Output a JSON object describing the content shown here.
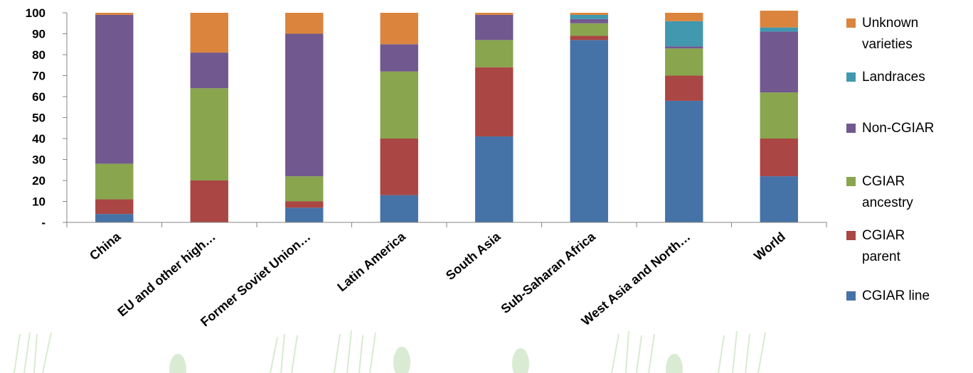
{
  "chart_data": {
    "type": "bar",
    "stacked": true,
    "title": "",
    "xlabel": "",
    "ylabel": "",
    "ylim": [
      0,
      100
    ],
    "yticks": [
      {
        "value": 0,
        "label": "-"
      },
      {
        "value": 10,
        "label": "10"
      },
      {
        "value": 20,
        "label": "20"
      },
      {
        "value": 30,
        "label": "30"
      },
      {
        "value": 40,
        "label": "40"
      },
      {
        "value": 50,
        "label": "50"
      },
      {
        "value": 60,
        "label": "60"
      },
      {
        "value": 70,
        "label": "70"
      },
      {
        "value": 80,
        "label": "80"
      },
      {
        "value": 90,
        "label": "90"
      },
      {
        "value": 100,
        "label": "100"
      }
    ],
    "grid": false,
    "legend_position": "right",
    "categories": [
      "China",
      "EU and other high…",
      "Former Soviet Union…",
      "Latin America",
      "South Asia",
      "Sub-Saharan Africa",
      "West Asia and North…",
      "World"
    ],
    "series": [
      {
        "name": "CGIAR line",
        "color": "#4572A7",
        "values": [
          4,
          0,
          7,
          13,
          41,
          87,
          58,
          22
        ]
      },
      {
        "name": "CGIAR parent",
        "color": "#AA4643",
        "values": [
          7,
          20,
          3,
          27,
          33,
          2,
          12,
          18
        ]
      },
      {
        "name": "CGIAR ancestry",
        "color": "#89A54E",
        "values": [
          17,
          44,
          12,
          32,
          13,
          6,
          13,
          22
        ]
      },
      {
        "name": "Non-CGIAR",
        "color": "#71588F",
        "values": [
          71,
          17,
          68,
          13,
          12,
          2,
          1,
          29
        ]
      },
      {
        "name": "Landraces",
        "color": "#4198AF",
        "values": [
          0,
          0,
          0,
          0,
          0,
          2,
          12,
          2
        ]
      },
      {
        "name": "Unknown varieties",
        "color": "#DB843D",
        "values": [
          1,
          19,
          10,
          15,
          1,
          1,
          4,
          8
        ]
      }
    ],
    "legend": [
      {
        "name": "Unknown varieties",
        "lines": [
          "Unknown",
          "varieties"
        ],
        "color": "#DB843D"
      },
      {
        "name": "Landraces",
        "lines": [
          "Landraces"
        ],
        "color": "#4198AF"
      },
      {
        "name": "Non-CGIAR",
        "lines": [
          "Non-CGIAR"
        ],
        "color": "#71588F"
      },
      {
        "name": "CGIAR ancestry",
        "lines": [
          "CGIAR",
          "ancestry"
        ],
        "color": "#89A54E"
      },
      {
        "name": "CGIAR parent",
        "lines": [
          "CGIAR",
          "parent"
        ],
        "color": "#AA4643"
      },
      {
        "name": "CGIAR line",
        "lines": [
          "CGIAR line"
        ],
        "color": "#4572A7"
      }
    ]
  }
}
